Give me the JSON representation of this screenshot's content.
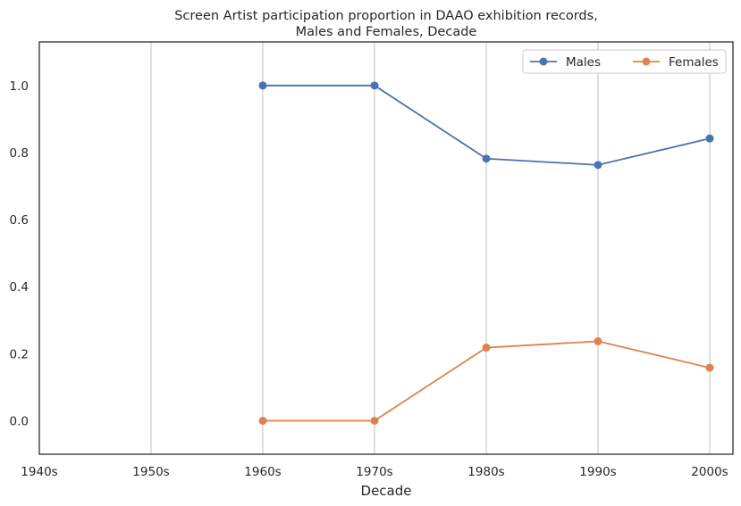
{
  "chart_data": {
    "type": "line",
    "title_line1": "Screen Artist participation proportion in DAAO exhibition records,",
    "title_line2": "Males and Females, Decade",
    "xlabel": "Decade",
    "ylabel": "",
    "categories": [
      "1940s",
      "1950s",
      "1960s",
      "1970s",
      "1980s",
      "1990s",
      "2000s"
    ],
    "yticks": [
      "0.0",
      "0.2",
      "0.4",
      "0.6",
      "0.8",
      "1.0"
    ],
    "ylim": [
      -0.1,
      1.13
    ],
    "grid": "vertical",
    "legend_position": "top-right",
    "series": [
      {
        "name": "Males",
        "color": "#4c72b0",
        "values": [
          null,
          null,
          1.0,
          1.0,
          0.782,
          0.763,
          0.842
        ]
      },
      {
        "name": "Females",
        "color": "#dd8452",
        "values": [
          null,
          null,
          0.0,
          0.0,
          0.218,
          0.237,
          0.158
        ]
      }
    ]
  }
}
